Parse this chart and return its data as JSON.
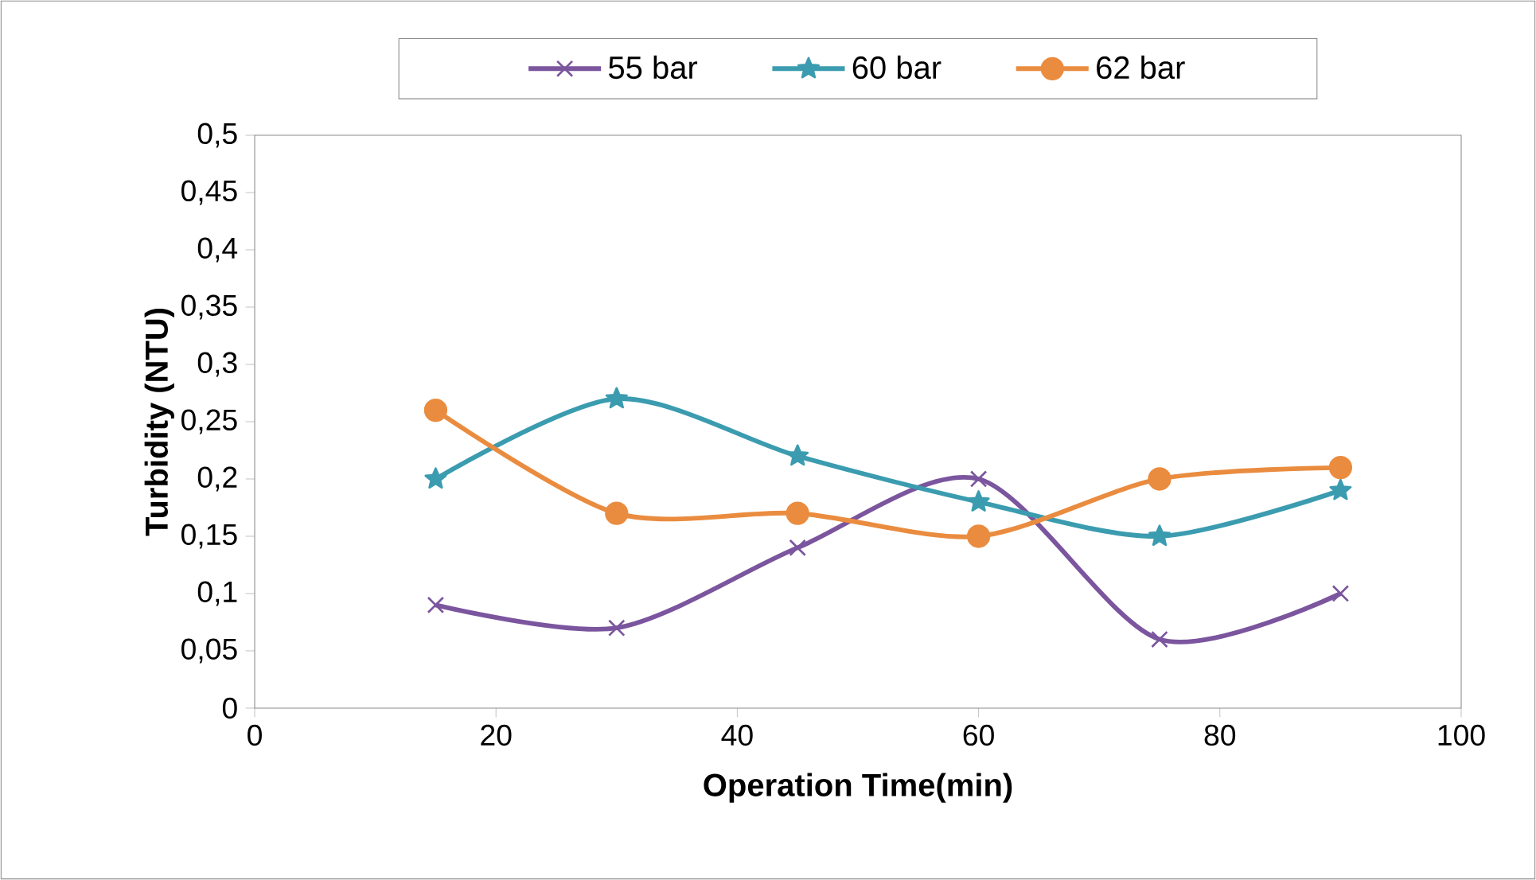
{
  "chart_data": {
    "type": "line",
    "xlabel": "Operation Time(min)",
    "ylabel": "Turbidity (NTU)",
    "x": [
      15,
      30,
      45,
      60,
      75,
      90
    ],
    "series": [
      {
        "name": "55 bar",
        "color": "#7b559e",
        "marker": "cross",
        "values": [
          0.09,
          0.07,
          0.14,
          0.2,
          0.06,
          0.1
        ]
      },
      {
        "name": "60 bar",
        "color": "#3b9cb0",
        "marker": "star",
        "values": [
          0.2,
          0.27,
          0.22,
          0.18,
          0.15,
          0.19
        ]
      },
      {
        "name": "62 bar",
        "color": "#ea8c3f",
        "marker": "circle",
        "values": [
          0.26,
          0.17,
          0.17,
          0.15,
          0.2,
          0.21
        ]
      }
    ],
    "xlim": [
      0,
      100
    ],
    "xticks": [
      0,
      20,
      40,
      60,
      80,
      100
    ],
    "ylim": [
      0,
      0.5
    ],
    "yticks": [
      0,
      {
        "value": 0.05,
        "label": "0,05"
      },
      {
        "value": 0.1,
        "label": "0,1"
      },
      {
        "value": 0.15,
        "label": "0,15"
      },
      {
        "value": 0.2,
        "label": "0,2"
      },
      {
        "value": 0.25,
        "label": "0,25"
      },
      {
        "value": 0.3,
        "label": "0,3"
      },
      {
        "value": 0.35,
        "label": "0,35"
      },
      {
        "value": 0.4,
        "label": "0,4"
      },
      {
        "value": 0.45,
        "label": "0,45"
      },
      {
        "value": 0.5,
        "label": "0,5"
      }
    ],
    "legend": "top",
    "line_style": "solid"
  }
}
